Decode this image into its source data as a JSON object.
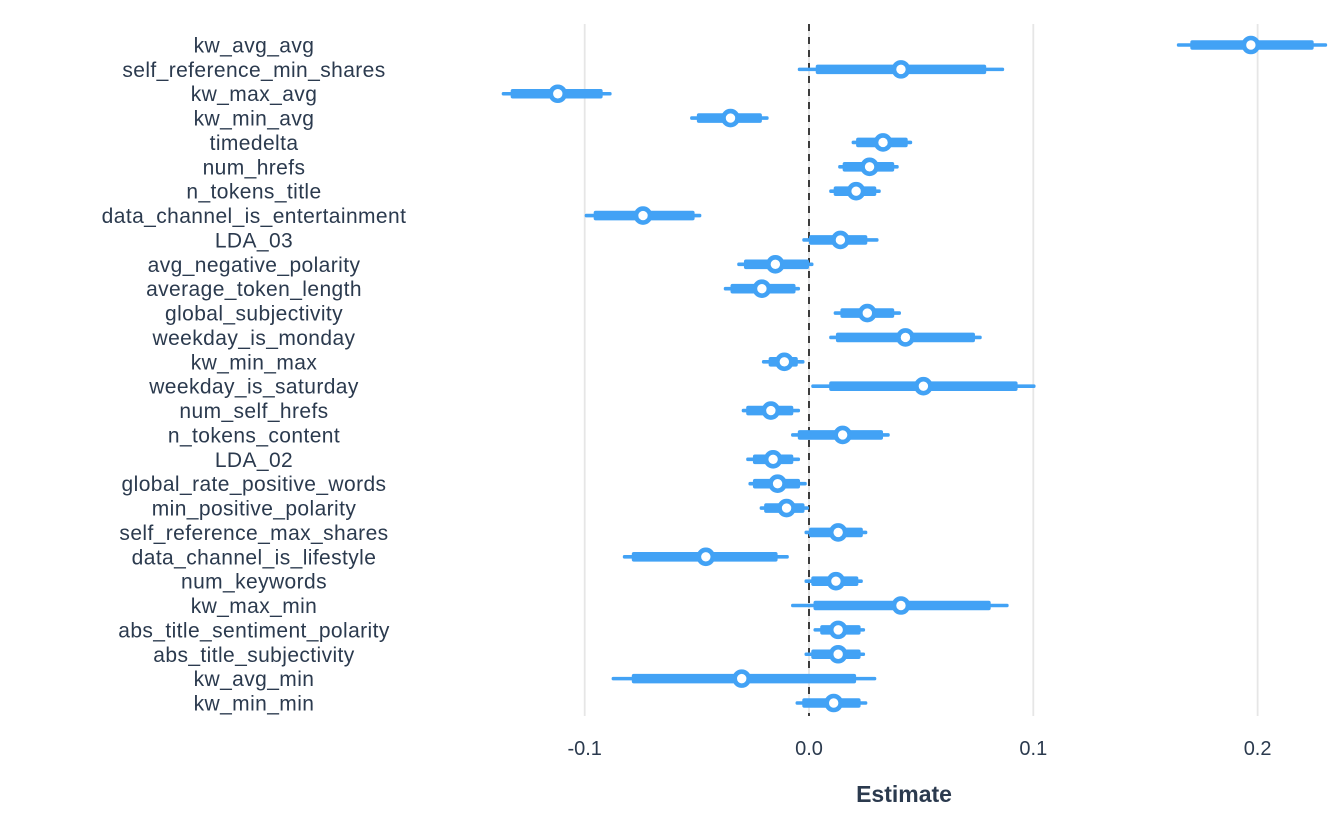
{
  "chart_data": {
    "type": "scatter",
    "variant": "coefficient-dot-whisker-forest-plot",
    "title": "",
    "xlabel": "Estimate",
    "ylabel": "",
    "xlim": [
      -0.145,
      0.232
    ],
    "grid": "vertical-gridlines-only",
    "legend_position": "none",
    "reference_line": {
      "value": 0.0,
      "style": "dashed",
      "color": "#1f1f1f"
    },
    "x_ticks": [
      {
        "label": "-0.1",
        "value": -0.1
      },
      {
        "label": "0.0",
        "value": 0.0
      },
      {
        "label": "0.1",
        "value": 0.1
      },
      {
        "label": "0.2",
        "value": 0.2
      }
    ],
    "colors": {
      "interval_bar": "#42a2f5",
      "point_fill": "#ffffff",
      "point_stroke": "#42a2f5",
      "text": "#2b3a4e",
      "gridline": "#e6e6e6",
      "background": "#ffffff"
    },
    "rows": [
      {
        "label": "kw_avg_avg",
        "estimate": 0.197,
        "inner_ci": [
          0.17,
          0.225
        ],
        "outer_ci": [
          0.164,
          0.231
        ]
      },
      {
        "label": "self_reference_min_shares",
        "estimate": 0.041,
        "inner_ci": [
          0.003,
          0.079
        ],
        "outer_ci": [
          -0.005,
          0.087
        ]
      },
      {
        "label": "kw_max_avg",
        "estimate": -0.112,
        "inner_ci": [
          -0.133,
          -0.092
        ],
        "outer_ci": [
          -0.137,
          -0.088
        ]
      },
      {
        "label": "kw_min_avg",
        "estimate": -0.035,
        "inner_ci": [
          -0.05,
          -0.021
        ],
        "outer_ci": [
          -0.053,
          -0.018
        ]
      },
      {
        "label": "timedelta",
        "estimate": 0.033,
        "inner_ci": [
          0.021,
          0.044
        ],
        "outer_ci": [
          0.019,
          0.046
        ]
      },
      {
        "label": "num_hrefs",
        "estimate": 0.027,
        "inner_ci": [
          0.015,
          0.038
        ],
        "outer_ci": [
          0.013,
          0.04
        ]
      },
      {
        "label": "n_tokens_title",
        "estimate": 0.021,
        "inner_ci": [
          0.011,
          0.03
        ],
        "outer_ci": [
          0.009,
          0.032
        ]
      },
      {
        "label": "data_channel_is_entertainment",
        "estimate": -0.074,
        "inner_ci": [
          -0.096,
          -0.051
        ],
        "outer_ci": [
          -0.1,
          -0.048
        ]
      },
      {
        "label": "LDA_03",
        "estimate": 0.014,
        "inner_ci": [
          0.0,
          0.026
        ],
        "outer_ci": [
          -0.003,
          0.031
        ]
      },
      {
        "label": "avg_negative_polarity",
        "estimate": -0.015,
        "inner_ci": [
          -0.029,
          0.0
        ],
        "outer_ci": [
          -0.032,
          0.002
        ]
      },
      {
        "label": "average_token_length",
        "estimate": -0.021,
        "inner_ci": [
          -0.035,
          -0.006
        ],
        "outer_ci": [
          -0.038,
          -0.004
        ]
      },
      {
        "label": "global_subjectivity",
        "estimate": 0.026,
        "inner_ci": [
          0.014,
          0.038
        ],
        "outer_ci": [
          0.011,
          0.041
        ]
      },
      {
        "label": "weekday_is_monday",
        "estimate": 0.043,
        "inner_ci": [
          0.012,
          0.074
        ],
        "outer_ci": [
          0.009,
          0.077
        ]
      },
      {
        "label": "kw_min_max",
        "estimate": -0.011,
        "inner_ci": [
          -0.018,
          -0.005
        ],
        "outer_ci": [
          -0.021,
          -0.002
        ]
      },
      {
        "label": "weekday_is_saturday",
        "estimate": 0.051,
        "inner_ci": [
          0.009,
          0.093
        ],
        "outer_ci": [
          0.001,
          0.101
        ]
      },
      {
        "label": "num_self_hrefs",
        "estimate": -0.017,
        "inner_ci": [
          -0.028,
          -0.007
        ],
        "outer_ci": [
          -0.03,
          -0.004
        ]
      },
      {
        "label": "n_tokens_content",
        "estimate": 0.015,
        "inner_ci": [
          -0.005,
          0.033
        ],
        "outer_ci": [
          -0.008,
          0.036
        ]
      },
      {
        "label": "LDA_02",
        "estimate": -0.016,
        "inner_ci": [
          -0.025,
          -0.007
        ],
        "outer_ci": [
          -0.028,
          -0.004
        ]
      },
      {
        "label": "global_rate_positive_words",
        "estimate": -0.014,
        "inner_ci": [
          -0.025,
          -0.004
        ],
        "outer_ci": [
          -0.027,
          -0.001
        ]
      },
      {
        "label": "min_positive_polarity",
        "estimate": -0.01,
        "inner_ci": [
          -0.02,
          -0.002
        ],
        "outer_ci": [
          -0.022,
          0.0
        ]
      },
      {
        "label": "self_reference_max_shares",
        "estimate": 0.013,
        "inner_ci": [
          0.0,
          0.024
        ],
        "outer_ci": [
          -0.002,
          0.026
        ]
      },
      {
        "label": "data_channel_is_lifestyle",
        "estimate": -0.046,
        "inner_ci": [
          -0.079,
          -0.014
        ],
        "outer_ci": [
          -0.083,
          -0.009
        ]
      },
      {
        "label": "num_keywords",
        "estimate": 0.012,
        "inner_ci": [
          0.001,
          0.022
        ],
        "outer_ci": [
          -0.002,
          0.024
        ]
      },
      {
        "label": "kw_max_min",
        "estimate": 0.041,
        "inner_ci": [
          0.002,
          0.081
        ],
        "outer_ci": [
          -0.008,
          0.089
        ]
      },
      {
        "label": "abs_title_sentiment_polarity",
        "estimate": 0.013,
        "inner_ci": [
          0.005,
          0.023
        ],
        "outer_ci": [
          0.002,
          0.025
        ]
      },
      {
        "label": "abs_title_subjectivity",
        "estimate": 0.013,
        "inner_ci": [
          0.001,
          0.023
        ],
        "outer_ci": [
          -0.002,
          0.025
        ]
      },
      {
        "label": "kw_avg_min",
        "estimate": -0.03,
        "inner_ci": [
          -0.079,
          0.021
        ],
        "outer_ci": [
          -0.088,
          0.03
        ]
      },
      {
        "label": "kw_min_min",
        "estimate": 0.011,
        "inner_ci": [
          -0.003,
          0.023
        ],
        "outer_ci": [
          -0.006,
          0.026
        ]
      }
    ]
  }
}
